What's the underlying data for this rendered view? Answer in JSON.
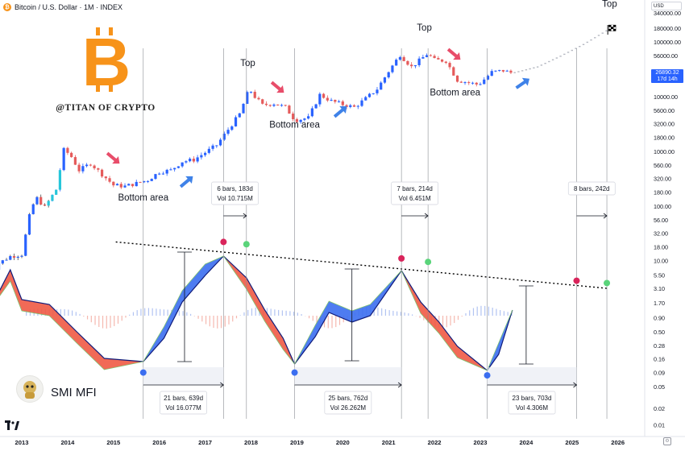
{
  "header": {
    "symbol_icon": "bitcoin-coin-icon",
    "title": "Bitcoin / U.S. Dollar · 1M · INDEX"
  },
  "currency_label": "USD",
  "current_price": {
    "value": "26890.32",
    "countdown": "17d 14h"
  },
  "indicator_name": "SMI MFI",
  "watermark": "@TITAN OF CRYPTO",
  "colors": {
    "bull": "#2962ff",
    "bear": "#e55b5b",
    "mfi_blue": "#3b6ef0",
    "mfi_red": "#ef5a45",
    "marker_red": "#d9245b",
    "marker_green": "#5ad47a",
    "marker_blue": "#3b6ef0",
    "arrow_red": "#e84d6a",
    "arrow_blue": "#3f82e8",
    "bitcoin_orange": "#f7931a"
  },
  "chart_data": {
    "type": "line",
    "y_scale": "log",
    "x_axis": [
      "2013",
      "2014",
      "2015",
      "2016",
      "2017",
      "2018",
      "2019",
      "2020",
      "2021",
      "2022",
      "2023",
      "2024",
      "2025",
      "2026"
    ],
    "y_ticks": [
      "340000.00",
      "180000.00",
      "100000.00",
      "56000.00",
      "10000.00",
      "5600.00",
      "3200.00",
      "1800.00",
      "1000.00",
      "560.00",
      "320.00",
      "180.00",
      "100.00",
      "56.00",
      "32.00",
      "18.00",
      "10.00",
      "5.50",
      "3.10",
      "1.70",
      "0.90",
      "0.50",
      "0.28",
      "0.16",
      "0.09",
      "0.05",
      "0.02",
      "0.01"
    ],
    "price_path": [
      {
        "x": 2012.25,
        "y": 5
      },
      {
        "x": 2012.5,
        "y": 9
      },
      {
        "x": 2012.75,
        "y": 12
      },
      {
        "x": 2013.0,
        "y": 13
      },
      {
        "x": 2013.2,
        "y": 90
      },
      {
        "x": 2013.33,
        "y": 140
      },
      {
        "x": 2013.5,
        "y": 95
      },
      {
        "x": 2013.75,
        "y": 200
      },
      {
        "x": 2013.92,
        "y": 1100
      },
      {
        "x": 2014.08,
        "y": 800
      },
      {
        "x": 2014.25,
        "y": 450
      },
      {
        "x": 2014.5,
        "y": 600
      },
      {
        "x": 2014.75,
        "y": 380
      },
      {
        "x": 2015.0,
        "y": 240
      },
      {
        "x": 2015.25,
        "y": 230
      },
      {
        "x": 2015.5,
        "y": 260
      },
      {
        "x": 2015.75,
        "y": 300
      },
      {
        "x": 2016.0,
        "y": 420
      },
      {
        "x": 2016.25,
        "y": 450
      },
      {
        "x": 2016.5,
        "y": 650
      },
      {
        "x": 2016.75,
        "y": 700
      },
      {
        "x": 2017.0,
        "y": 950
      },
      {
        "x": 2017.25,
        "y": 1300
      },
      {
        "x": 2017.5,
        "y": 2500
      },
      {
        "x": 2017.75,
        "y": 4800
      },
      {
        "x": 2017.96,
        "y": 14000
      },
      {
        "x": 2018.08,
        "y": 10000
      },
      {
        "x": 2018.25,
        "y": 7000
      },
      {
        "x": 2018.5,
        "y": 7500
      },
      {
        "x": 2018.75,
        "y": 6400
      },
      {
        "x": 2018.96,
        "y": 3700
      },
      {
        "x": 2019.25,
        "y": 4100
      },
      {
        "x": 2019.5,
        "y": 10800
      },
      {
        "x": 2019.75,
        "y": 8300
      },
      {
        "x": 2020.0,
        "y": 7200
      },
      {
        "x": 2020.25,
        "y": 6400
      },
      {
        "x": 2020.5,
        "y": 9200
      },
      {
        "x": 2020.75,
        "y": 13800
      },
      {
        "x": 2021.0,
        "y": 29000
      },
      {
        "x": 2021.25,
        "y": 58000
      },
      {
        "x": 2021.5,
        "y": 35000
      },
      {
        "x": 2021.85,
        "y": 61000
      },
      {
        "x": 2022.0,
        "y": 47000
      },
      {
        "x": 2022.25,
        "y": 45000
      },
      {
        "x": 2022.5,
        "y": 20000
      },
      {
        "x": 2022.96,
        "y": 16500
      },
      {
        "x": 2023.25,
        "y": 28000
      },
      {
        "x": 2023.5,
        "y": 30000
      },
      {
        "x": 2023.7,
        "y": 26900
      }
    ],
    "projection_path": [
      {
        "x": 2023.7,
        "y": 26900
      },
      {
        "x": 2024.25,
        "y": 35000
      },
      {
        "x": 2024.75,
        "y": 55000
      },
      {
        "x": 2025.25,
        "y": 90000
      },
      {
        "x": 2025.75,
        "y": 160000
      },
      {
        "x": 2025.8,
        "y": 190000
      }
    ],
    "trendline": [
      {
        "x": 2015.05,
        "y": 22
      },
      {
        "x": 2025.8,
        "y": 3.1
      }
    ],
    "annotations": [
      {
        "text": "Bottom area",
        "x": 2015.65,
        "y": 125
      },
      {
        "text": "Bottom area",
        "x": 2018.95,
        "y": 2700
      },
      {
        "text": "Bottom area",
        "x": 2022.45,
        "y": 10500
      },
      {
        "text": "Top",
        "x": 2017.93,
        "y": 36000
      },
      {
        "text": "Top",
        "x": 2021.78,
        "y": 160000
      },
      {
        "text": "Top",
        "x": 2025.82,
        "y": 440000
      }
    ],
    "cycles": [
      {
        "bars_label": "6 bars, 183d",
        "vol_label": "Vol 10.715M",
        "x_from": 2017.4,
        "x_to": 2017.9
      },
      {
        "bars_label": "7 bars, 214d",
        "vol_label": "Vol 6.451M",
        "x_from": 2021.28,
        "x_to": 2021.86
      },
      {
        "bars_label": "8 bars, 242d",
        "vol_label": "",
        "x_from": 2025.1,
        "x_to": 2025.76
      },
      {
        "bars_label": "21 bars, 639d",
        "vol_label": "Vol 16.077M",
        "x_from": 2015.65,
        "x_to": 2017.4
      },
      {
        "bars_label": "25 bars, 762d",
        "vol_label": "Vol 26.262M",
        "x_from": 2018.95,
        "x_to": 2021.28
      },
      {
        "bars_label": "23 bars, 703d",
        "vol_label": "Vol 4.306M",
        "x_from": 2023.15,
        "x_to": 2025.1
      }
    ],
    "markers": [
      {
        "type": "top",
        "color": "red",
        "x": 2017.4,
        "y": 22
      },
      {
        "type": "top",
        "color": "green",
        "x": 2017.9,
        "y": 20
      },
      {
        "type": "top",
        "color": "red",
        "x": 2021.28,
        "y": 11
      },
      {
        "type": "top",
        "color": "green",
        "x": 2021.86,
        "y": 9.5
      },
      {
        "type": "top",
        "color": "red",
        "x": 2025.1,
        "y": 4.3
      },
      {
        "type": "top",
        "color": "green",
        "x": 2025.76,
        "y": 3.9
      },
      {
        "type": "bottom",
        "color": "blue",
        "x": 2015.65,
        "y": 0.09
      },
      {
        "type": "bottom",
        "color": "blue",
        "x": 2018.95,
        "y": 0.09
      },
      {
        "type": "bottom",
        "color": "blue",
        "x": 2023.15,
        "y": 0.08
      }
    ]
  }
}
